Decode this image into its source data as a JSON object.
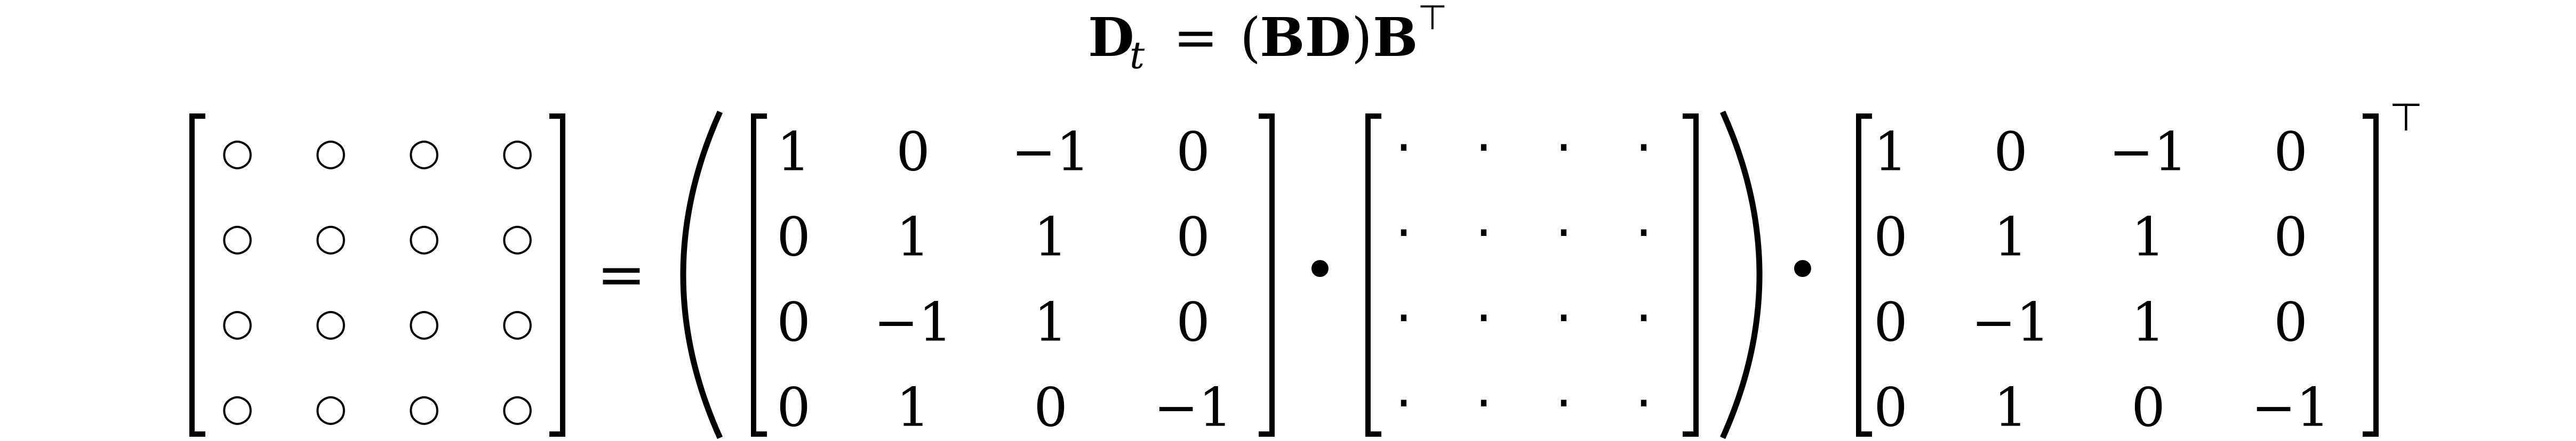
{
  "title": {
    "lhs_symbol": "D",
    "lhs_subscript": "t",
    "equals": "=",
    "open_paren": "(",
    "inner_product": "BD",
    "close_paren": ")",
    "rhs_symbol": "B",
    "transpose_mark": "⊤"
  },
  "equation": {
    "equals_sign": "=",
    "product_operator": "•",
    "transpose_mark": "⊤",
    "result_matrix": [
      [
        "○",
        "○",
        "○",
        "○"
      ],
      [
        "○",
        "○",
        "○",
        "○"
      ],
      [
        "○",
        "○",
        "○",
        "○"
      ],
      [
        "○",
        "○",
        "○",
        "○"
      ]
    ],
    "B_matrix": [
      [
        "1",
        "0",
        "−1",
        "0"
      ],
      [
        "0",
        "1",
        "1",
        "0"
      ],
      [
        "0",
        "−1",
        "1",
        "0"
      ],
      [
        "0",
        "1",
        "0",
        "−1"
      ]
    ],
    "D_matrix": [
      [
        "·",
        "·",
        "·",
        "·"
      ],
      [
        "·",
        "·",
        "·",
        "·"
      ],
      [
        "·",
        "·",
        "·",
        "·"
      ],
      [
        "·",
        "·",
        "·",
        "·"
      ]
    ],
    "BT_matrix": [
      [
        "1",
        "0",
        "−1",
        "0"
      ],
      [
        "0",
        "1",
        "1",
        "0"
      ],
      [
        "0",
        "−1",
        "1",
        "0"
      ],
      [
        "0",
        "1",
        "0",
        "−1"
      ]
    ]
  }
}
